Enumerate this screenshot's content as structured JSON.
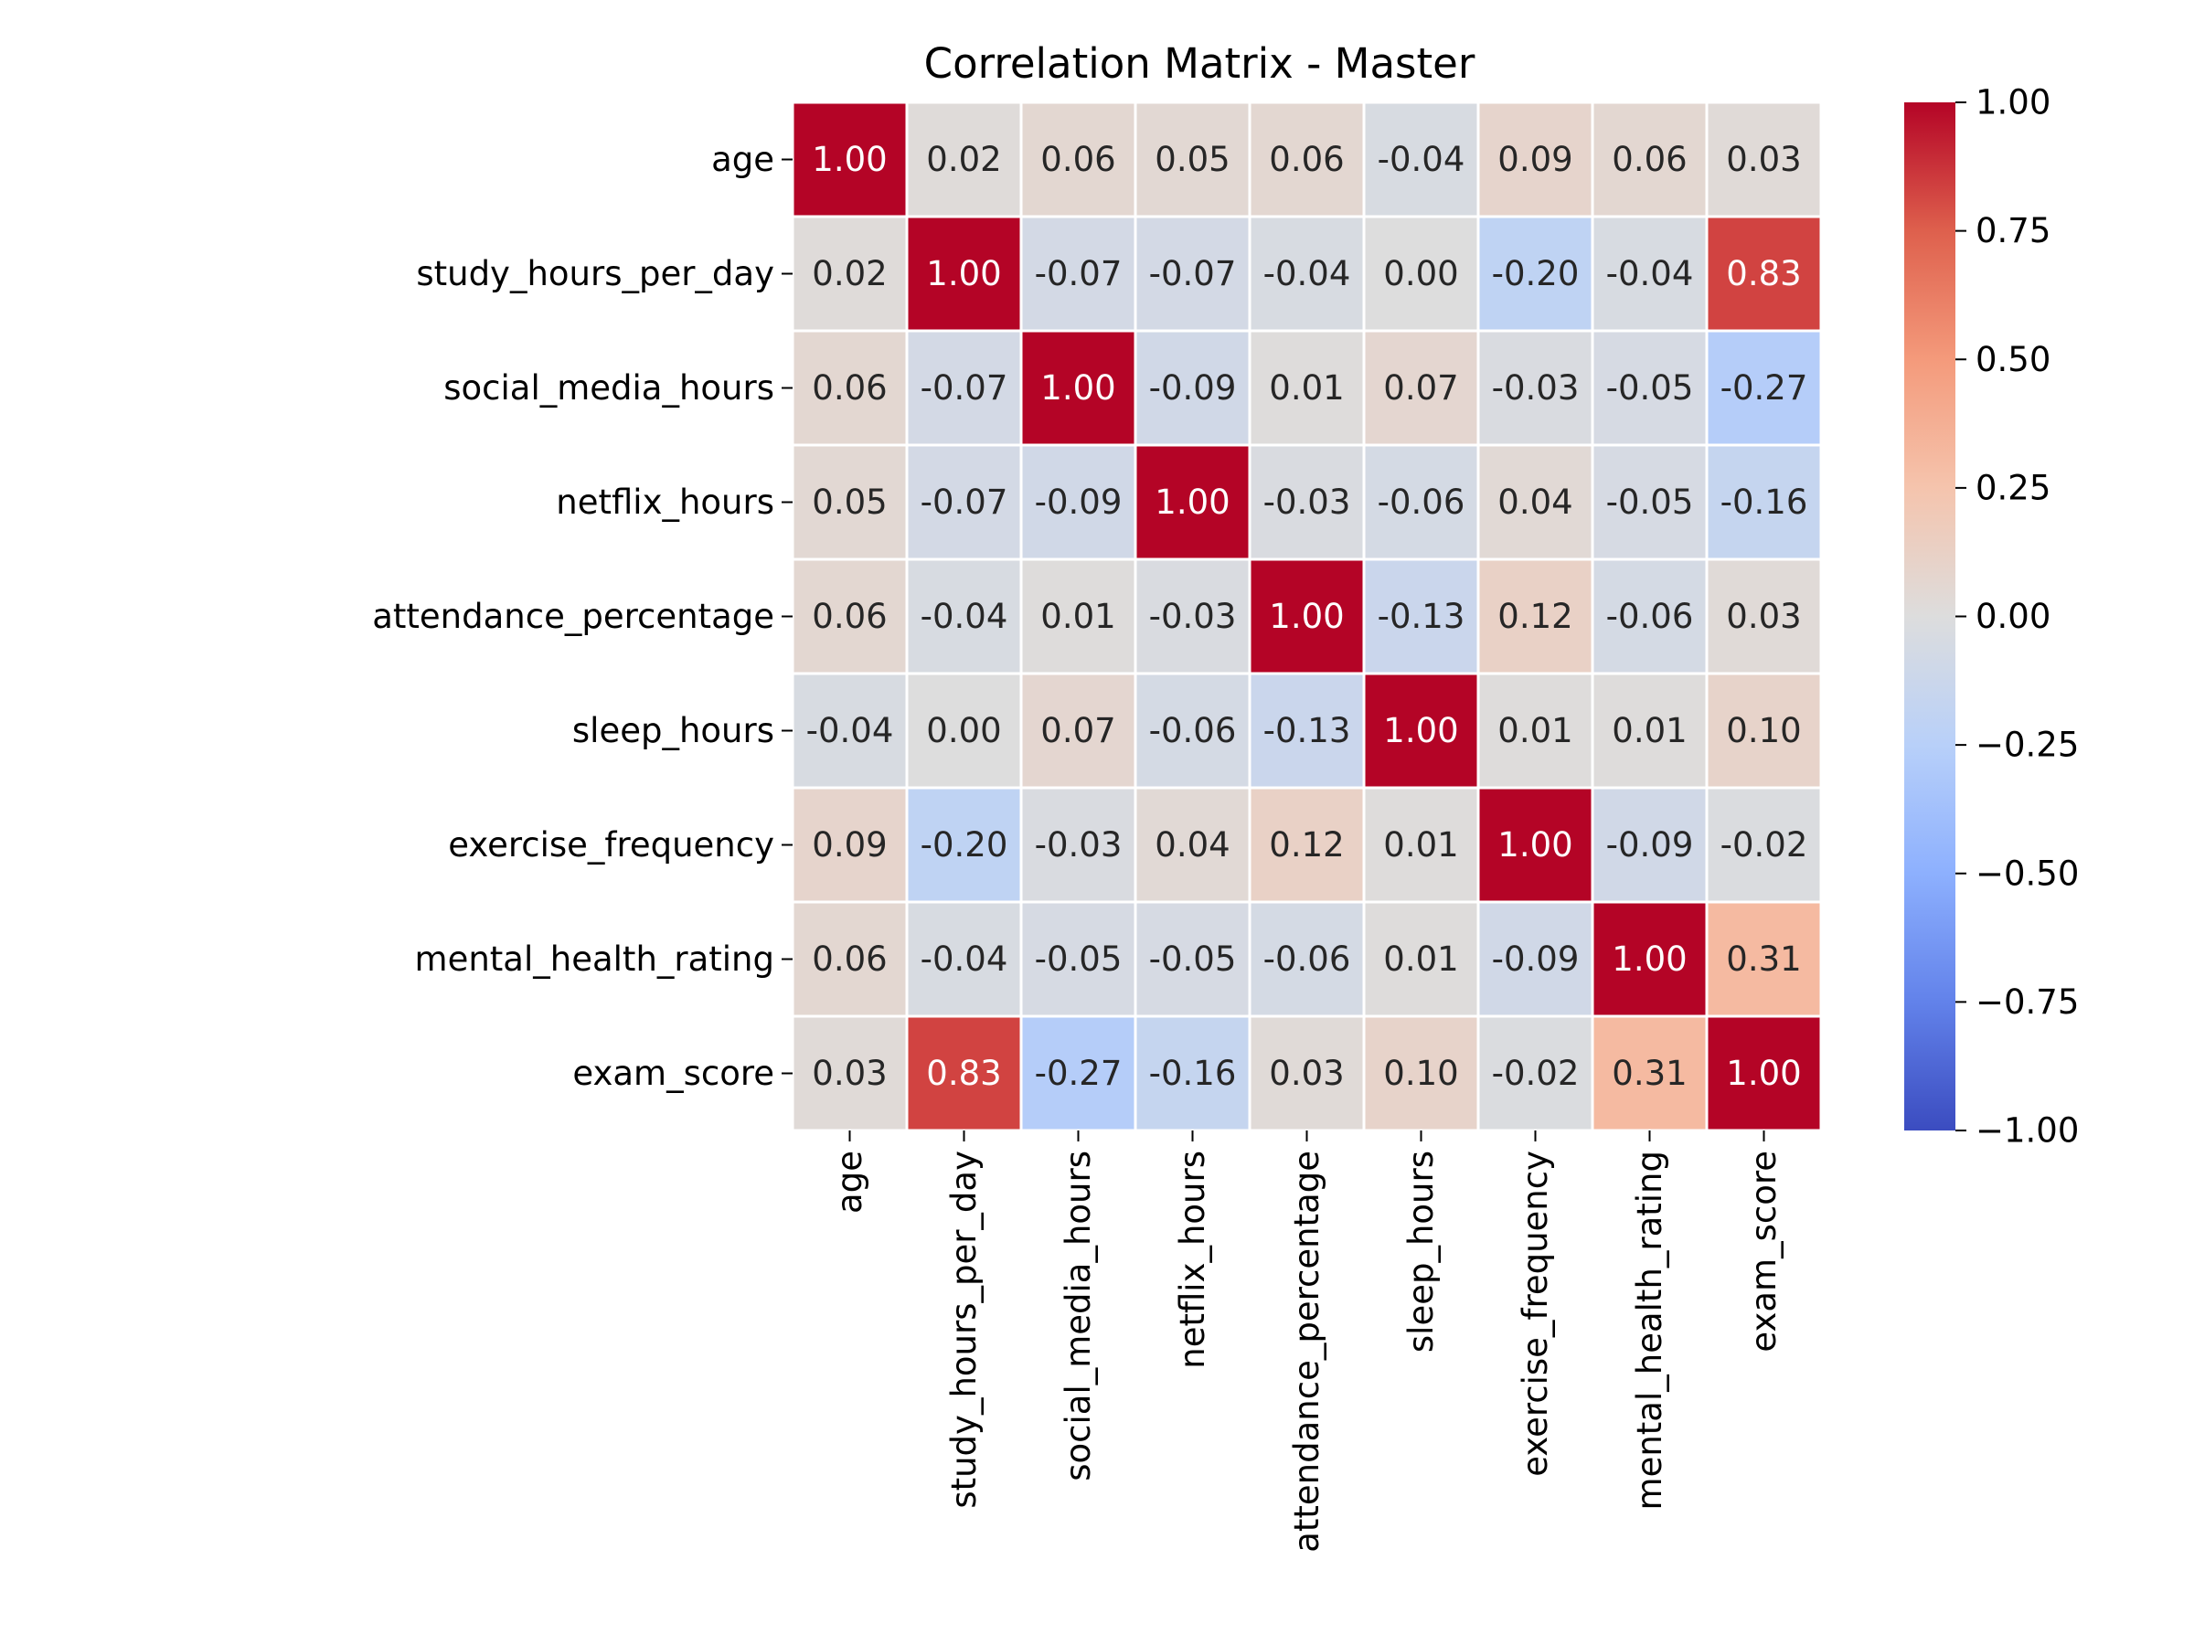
{
  "chart_data": {
    "type": "heatmap",
    "title": "Correlation Matrix - Master",
    "rows": [
      "age",
      "study_hours_per_day",
      "social_media_hours",
      "netflix_hours",
      "attendance_percentage",
      "sleep_hours",
      "exercise_frequency",
      "mental_health_rating",
      "exam_score"
    ],
    "columns": [
      "age",
      "study_hours_per_day",
      "social_media_hours",
      "netflix_hours",
      "attendance_percentage",
      "sleep_hours",
      "exercise_frequency",
      "mental_health_rating",
      "exam_score"
    ],
    "values": [
      [
        1.0,
        0.02,
        0.06,
        0.05,
        0.06,
        -0.04,
        0.09,
        0.06,
        0.03
      ],
      [
        0.02,
        1.0,
        -0.07,
        -0.07,
        -0.04,
        0.0,
        -0.2,
        -0.04,
        0.83
      ],
      [
        0.06,
        -0.07,
        1.0,
        -0.09,
        0.01,
        0.07,
        -0.03,
        -0.05,
        -0.27
      ],
      [
        0.05,
        -0.07,
        -0.09,
        1.0,
        -0.03,
        -0.06,
        0.04,
        -0.05,
        -0.16
      ],
      [
        0.06,
        -0.04,
        0.01,
        -0.03,
        1.0,
        -0.13,
        0.12,
        -0.06,
        0.03
      ],
      [
        -0.04,
        0.0,
        0.07,
        -0.06,
        -0.13,
        1.0,
        0.01,
        0.01,
        0.1
      ],
      [
        0.09,
        -0.2,
        -0.03,
        0.04,
        0.12,
        0.01,
        1.0,
        -0.09,
        -0.02
      ],
      [
        0.06,
        -0.04,
        -0.05,
        -0.05,
        -0.06,
        0.01,
        -0.09,
        1.0,
        0.31
      ],
      [
        0.03,
        0.83,
        -0.27,
        -0.16,
        0.03,
        0.1,
        -0.02,
        0.31,
        1.0
      ]
    ],
    "value_format": "0.00",
    "colormap": "coolwarm",
    "vmin": -1.0,
    "vmax": 1.0,
    "colorbar": {
      "ticks": [
        1.0,
        0.75,
        0.5,
        0.25,
        0.0,
        -0.25,
        -0.5,
        -0.75,
        -1.0
      ],
      "tick_labels": [
        "1.00",
        "0.75",
        "0.50",
        "0.25",
        "0.00",
        "−0.25",
        "−0.50",
        "−0.75",
        "−1.00"
      ]
    },
    "cell_border_color": "#ffffff",
    "annotation_colors": {
      "dark": "#262626",
      "light": "#ffffff"
    },
    "grid": false
  }
}
